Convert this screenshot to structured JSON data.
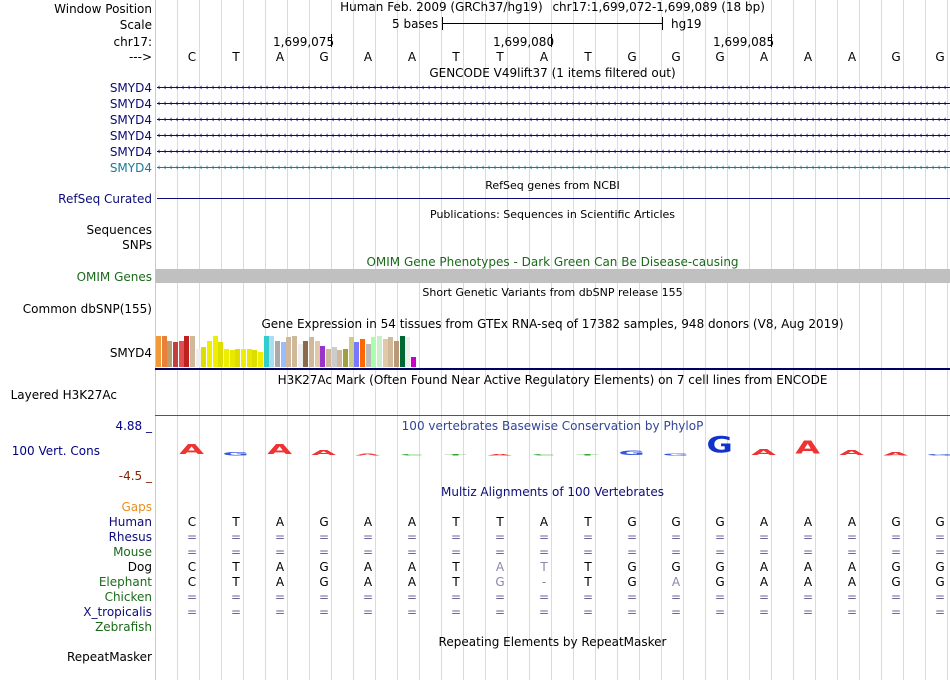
{
  "labels": {
    "window_position": "Window Position",
    "scale": "Scale",
    "chrom": "chr17:",
    "arrow": "--->",
    "gencode_rows": [
      "SMYD4",
      "SMYD4",
      "SMYD4",
      "SMYD4",
      "SMYD4",
      "SMYD4"
    ],
    "refseq": "RefSeq Curated",
    "sequences": "Sequences",
    "snps": "SNPs",
    "omim": "OMIM Genes",
    "dbsnp": "Common dbSNP(155)",
    "gtex": "SMYD4",
    "h3k27ac": "Layered H3K27Ac",
    "phylop_max": "4.88 _",
    "phylop_name": "100 Vert. Cons",
    "phylop_min": "-4.5 _",
    "gaps": "Gaps",
    "species": [
      "Human",
      "Rhesus",
      "Mouse",
      "Dog",
      "Elephant",
      "Chicken",
      "X_tropicalis",
      "Zebrafish"
    ],
    "repeatmasker": "RepeatMasker"
  },
  "header": {
    "assembly": "Human Feb. 2009 (GRCh37/hg19)",
    "position": "chr17:1,699,072-1,699,089 (18 bp)",
    "scale_label": "5 bases",
    "db": "hg19",
    "ticks": [
      "1,699,075",
      "1,699,080",
      "1,699,085"
    ]
  },
  "sequence": [
    "C",
    "T",
    "A",
    "G",
    "A",
    "A",
    "T",
    "T",
    "A",
    "T",
    "G",
    "G",
    "G",
    "A",
    "A",
    "A",
    "G",
    "G"
  ],
  "tracks": {
    "gencode_title": "GENCODE V49lift37 (1 items filtered out)",
    "refseq_title": "RefSeq genes from NCBI",
    "pubs_title": "Publications: Sequences in Scientific Articles",
    "omim_title": "OMIM Gene Phenotypes - Dark Green Can Be Disease-causing",
    "dbsnp_title": "Short Genetic Variants from dbSNP release 155",
    "gtex_title": "Gene Expression in 54 tissues from GTEx RNA-seq of 17382 samples, 948 donors (V8, Aug 2019)",
    "h3k27ac_title": "H3K27Ac Mark (Often Found Near Active Regulatory Elements) on 7 cell lines from ENCODE",
    "phylop_title": "100 vertebrates Basewise Conservation by PhyloP",
    "multiz_title": "Multiz Alignments of 100 Vertebrates",
    "repeat_title": "Repeating Elements by RepeatMasker"
  },
  "gtex_bars": [
    {
      "color": "#f09a3a",
      "value": 0.95
    },
    {
      "color": "#e8803a",
      "value": 0.95
    },
    {
      "color": "#b7a06e",
      "value": 0.8
    },
    {
      "color": "#c04040",
      "value": 0.75
    },
    {
      "color": "#e05050",
      "value": 0.8
    },
    {
      "color": "#c02020",
      "value": 0.95
    },
    {
      "color": "#d0b89a",
      "value": 0.95
    },
    {
      "color": "#eeeeee",
      "value": 0.55
    },
    {
      "color": "#dddd00",
      "value": 0.6
    },
    {
      "color": "#eeee00",
      "value": 0.8
    },
    {
      "color": "#eeee00",
      "value": 0.95
    },
    {
      "color": "#dddd00",
      "value": 0.75
    },
    {
      "color": "#eeee00",
      "value": 0.55
    },
    {
      "color": "#e8e800",
      "value": 0.5
    },
    {
      "color": "#dddd00",
      "value": 0.55
    },
    {
      "color": "#eeee00",
      "value": 0.55
    },
    {
      "color": "#e8e800",
      "value": 0.55
    },
    {
      "color": "#dddd00",
      "value": 0.5
    },
    {
      "color": "#eeee00",
      "value": 0.45
    },
    {
      "color": "#33cccc",
      "value": 0.95
    },
    {
      "color": "#aaddee",
      "value": 0.95
    },
    {
      "color": "#aaaaaa",
      "value": 0.8
    },
    {
      "color": "#99bbff",
      "value": 0.75
    },
    {
      "color": "#d0b89a",
      "value": 0.9
    },
    {
      "color": "#d0b89a",
      "value": 0.95
    },
    {
      "color": "#eeeeee",
      "value": 0.7
    },
    {
      "color": "#8a6a4a",
      "value": 0.8
    },
    {
      "color": "#d0b89a",
      "value": 0.9
    },
    {
      "color": "#e0c8a8",
      "value": 0.8
    },
    {
      "color": "#9933cc",
      "value": 0.65
    },
    {
      "color": "#d0b89a",
      "value": 0.55
    },
    {
      "color": "#cccccc",
      "value": 0.6
    },
    {
      "color": "#d0b89a",
      "value": 0.5
    },
    {
      "color": "#a0a040",
      "value": 0.55
    },
    {
      "color": "#cccc88",
      "value": 0.9
    },
    {
      "color": "#7777ff",
      "value": 0.75
    },
    {
      "color": "#ff6600",
      "value": 0.85
    },
    {
      "color": "#bbbbbb",
      "value": 0.7
    },
    {
      "color": "#aaffaa",
      "value": 0.9
    },
    {
      "color": "#cceecc",
      "value": 0.95
    },
    {
      "color": "#e0c8a8",
      "value": 0.85
    },
    {
      "color": "#d0b89a",
      "value": 0.9
    },
    {
      "color": "#b89a7a",
      "value": 0.8
    },
    {
      "color": "#006633",
      "value": 0.95
    },
    {
      "color": "#eeeeee",
      "value": 0.9
    },
    {
      "color": "#cc00cc",
      "value": 0.3
    }
  ],
  "phylop_letters": [
    {
      "base": "A",
      "color": "#ee3333",
      "score": 0.6
    },
    {
      "base": "G",
      "color": "#3355dd",
      "score": 0.2
    },
    {
      "base": "A",
      "color": "#ee3333",
      "score": 0.6
    },
    {
      "base": "A",
      "color": "#ee3333",
      "score": 0.3
    },
    {
      "base": "A",
      "color": "#ee3333",
      "score": 0.15
    },
    {
      "base": "C",
      "color": "#33aa33",
      "score": 0.1
    },
    {
      "base": "T",
      "color": "#33aa33",
      "score": 0.05
    },
    {
      "base": "A",
      "color": "#ee3333",
      "score": 0.05
    },
    {
      "base": "C",
      "color": "#33aa33",
      "score": 0.05
    },
    {
      "base": "T",
      "color": "#33aa33",
      "score": 0.1
    },
    {
      "base": "G",
      "color": "#3355dd",
      "score": 0.25
    },
    {
      "base": "G",
      "color": "#3355dd",
      "score": 0.15
    },
    {
      "base": "G",
      "color": "#1133cc",
      "score": 1.0
    },
    {
      "base": "A",
      "color": "#ee3333",
      "score": 0.35
    },
    {
      "base": "A",
      "color": "#ee3333",
      "score": 0.8
    },
    {
      "base": "A",
      "color": "#ee3333",
      "score": 0.3
    },
    {
      "base": "A",
      "color": "#ee3333",
      "score": 0.2
    },
    {
      "base": "G",
      "color": "#3355dd",
      "score": 0.1
    }
  ],
  "alignments": [
    [
      "C",
      "T",
      "A",
      "G",
      "A",
      "A",
      "T",
      "T",
      "A",
      "T",
      "G",
      "G",
      "G",
      "A",
      "A",
      "A",
      "G",
      "G"
    ],
    [
      "=",
      "=",
      "=",
      "=",
      "=",
      "=",
      "=",
      "=",
      "=",
      "=",
      "=",
      "=",
      "=",
      "=",
      "=",
      "=",
      "=",
      "="
    ],
    [
      "=",
      "=",
      "=",
      "=",
      "=",
      "=",
      "=",
      "=",
      "=",
      "=",
      "=",
      "=",
      "=",
      "=",
      "=",
      "=",
      "=",
      "="
    ],
    [
      "C",
      "T",
      "A",
      "G",
      "A",
      "A",
      "T",
      "A",
      "T",
      "T",
      "G",
      "G",
      "G",
      "A",
      "A",
      "A",
      "G",
      "G"
    ],
    [
      "C",
      "T",
      "A",
      "G",
      "A",
      "A",
      "T",
      "G",
      "-",
      "T",
      "G",
      "A",
      "G",
      "A",
      "A",
      "A",
      "G",
      "G"
    ],
    [
      "=",
      "=",
      "=",
      "=",
      "=",
      "=",
      "=",
      "=",
      "=",
      "=",
      "=",
      "=",
      "=",
      "=",
      "=",
      "=",
      "=",
      "="
    ],
    [
      "=",
      "=",
      "=",
      "=",
      "=",
      "=",
      "=",
      "=",
      "=",
      "=",
      "=",
      "=",
      "=",
      "=",
      "=",
      "=",
      "=",
      "="
    ],
    [
      "",
      "",
      "",
      "",
      "",
      "",
      "",
      "",
      "",
      "",
      "",
      "",
      "",
      "",
      "",
      "",
      "",
      ""
    ]
  ],
  "colors": {
    "gencode": "#0c0c78",
    "gencode_last": "#1a7a9a",
    "refseq": "#0c0c78",
    "omim": "#1a6a1a",
    "omim_bar": "#c0c0c0",
    "gaps": "#e89020",
    "phylop_axis_top": "#000088",
    "phylop_axis_bottom": "#882200",
    "h3k27ac_line": "#cc2222",
    "gtex_line": "#000066",
    "mismatch": "#8888aa"
  }
}
